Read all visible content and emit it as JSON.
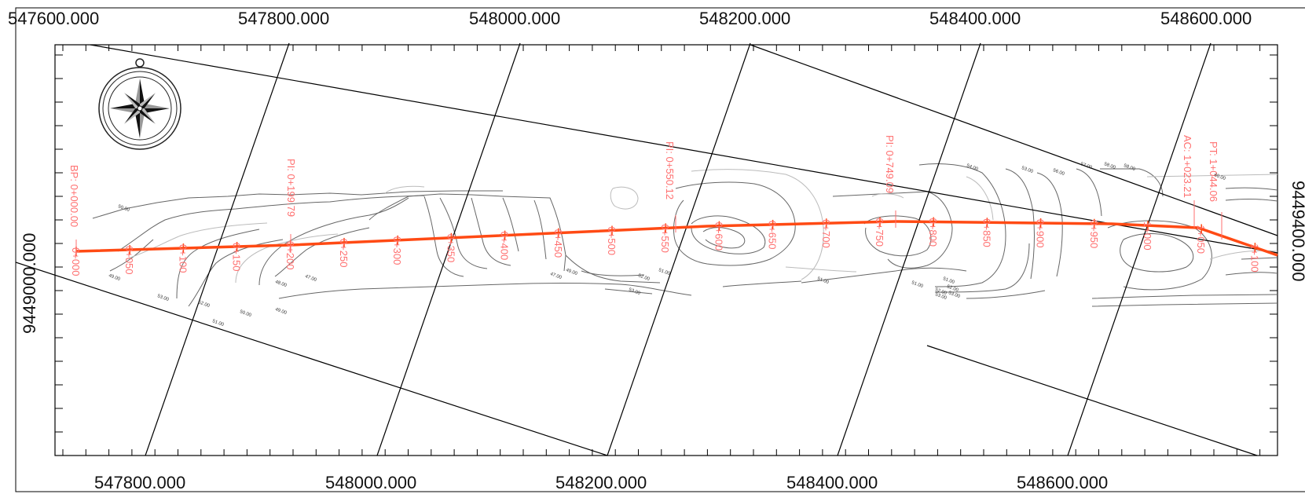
{
  "top_coords": [
    "547600.000",
    "547800.000",
    "548000.000",
    "548200.000",
    "548400.000",
    "548600.000"
  ],
  "bottom_coords": [
    "547800.000",
    "548000.000",
    "548200.000",
    "548400.000",
    "548600.000"
  ],
  "left_coord": "9449000.000",
  "right_coord": "9449400.000",
  "stations": [
    "0+000",
    "0+050",
    "0+100",
    "0+150",
    "0+200",
    "0+250",
    "0+300",
    "0+350",
    "0+400",
    "0+450",
    "0+500",
    "0+550",
    "0+600",
    "0+650",
    "0+700",
    "0+750",
    "0+800",
    "0+850",
    "0+900",
    "0+950",
    "1+000",
    "1+050",
    "1+100"
  ],
  "pi_labels": {
    "bp": "BP: 0+000.00",
    "pi1": "PI: 0+199.79",
    "pi2": "PI: 0+550.12",
    "pi3": "PI: 0+749.09",
    "ac": "AC: 1+023.21",
    "pt": "PT: 1+044.06"
  },
  "contour_labels": [
    "50.00",
    "49.00",
    "53.00",
    "52.00",
    "51.00",
    "50.00",
    "47.00",
    "48.00",
    "49.00",
    "47.00",
    "49.00",
    "51.00",
    "52.00",
    "53.00",
    "51.00",
    "51.00",
    "52.00",
    "53.00",
    "54.00",
    "53.00",
    "56.00",
    "57.00",
    "58.00",
    "58.00",
    "60.00",
    "51.00",
    "52.00",
    "53.00"
  ],
  "colors": {
    "alignment": "#ff4a14",
    "station_text": "#ff6f6f",
    "frame": "#000000",
    "contour_dark": "#555555",
    "contour_light": "#bbbbbb"
  },
  "icons": {
    "north_arrow": "compass-rose-icon"
  }
}
